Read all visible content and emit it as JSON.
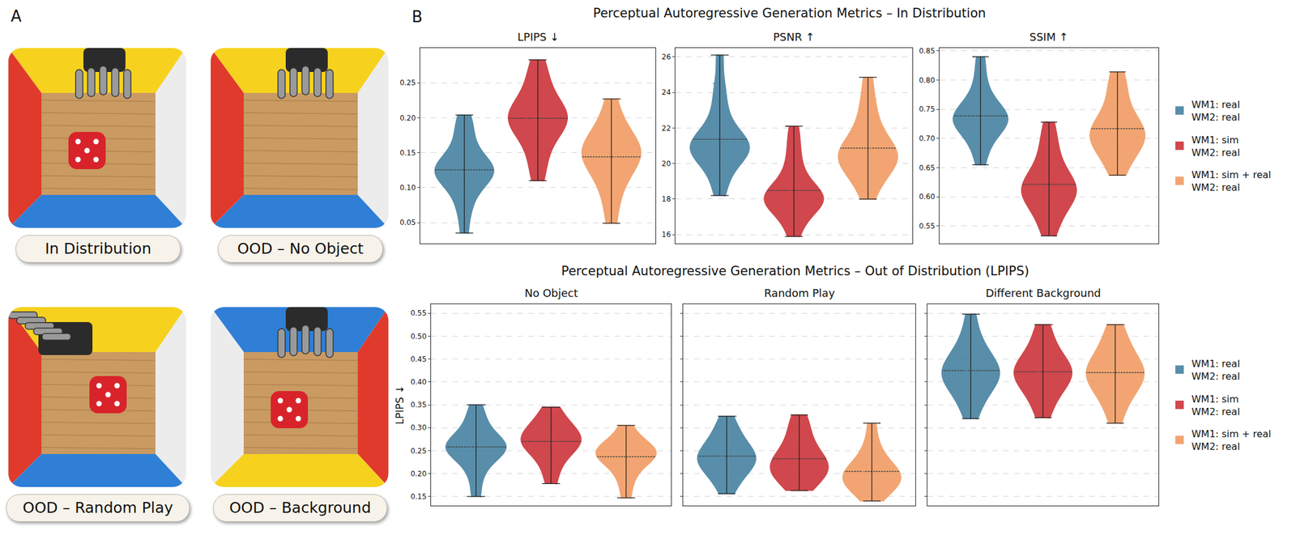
{
  "panel_a": {
    "letter": "A",
    "images": [
      "In Distribution",
      "OOD – No Object",
      "OOD – Random Play",
      "OOD – Background"
    ]
  },
  "panel_b": {
    "letter": "B",
    "titles": [
      "Perceptual Autoregressive Generation Metrics – In Distribution",
      "Perceptual Autoregressive Generation Metrics – Out of Distribution (LPIPS)"
    ]
  },
  "chart_data": [
    {
      "type": "violin",
      "title": "LPIPS ↓",
      "grid": true,
      "tick_labels": "y",
      "ylim": [
        0.02,
        0.3
      ],
      "yticks": [
        0.05,
        {
          "value": 0.1,
          "label": "0.10"
        },
        0.15,
        {
          "value": 0.2,
          "label": "0.20"
        },
        0.25
      ],
      "series": [
        {
          "name": "WM1: real\nWM2: real",
          "color": "#3b7b9c",
          "values": [
            0.035,
            0.065,
            0.08,
            0.095,
            0.105,
            0.11,
            0.115,
            0.12,
            0.122,
            0.125,
            0.128,
            0.13,
            0.135,
            0.14,
            0.15,
            0.16,
            0.175,
            0.19,
            0.204
          ]
        },
        {
          "name": "WM1: sim\nWM2: real",
          "color": "#c8282e",
          "values": [
            0.11,
            0.13,
            0.15,
            0.165,
            0.175,
            0.185,
            0.19,
            0.195,
            0.2,
            0.2,
            0.205,
            0.21,
            0.215,
            0.225,
            0.235,
            0.25,
            0.265,
            0.283
          ]
        },
        {
          "name": "WM1: sim + real\nWM2: real",
          "color": "#f0965a",
          "values": [
            0.049,
            0.08,
            0.1,
            0.115,
            0.125,
            0.135,
            0.14,
            0.145,
            0.15,
            0.155,
            0.16,
            0.165,
            0.175,
            0.185,
            0.2,
            0.227
          ]
        }
      ]
    },
    {
      "type": "violin",
      "title": "PSNR ↑",
      "grid": true,
      "tick_labels": "y",
      "ylim": [
        15.5,
        26.5
      ],
      "yticks": [
        16,
        18,
        20,
        22,
        24,
        26
      ],
      "series": [
        {
          "name": "WM1: real\nWM2: real",
          "color": "#3b7b9c",
          "values": [
            18.2,
            19.0,
            19.6,
            20.0,
            20.3,
            20.5,
            20.7,
            20.8,
            20.9,
            21.0,
            21.1,
            21.3,
            21.5,
            21.8,
            22.2,
            22.8,
            23.6,
            24.5,
            26.1
          ]
        },
        {
          "name": "WM1: sim\nWM2: real",
          "color": "#c8282e",
          "values": [
            15.9,
            16.6,
            17.1,
            17.4,
            17.6,
            17.8,
            17.9,
            18.0,
            18.1,
            18.2,
            18.3,
            18.5,
            18.8,
            19.2,
            19.7,
            20.4,
            21.2,
            22.1
          ]
        },
        {
          "name": "WM1: sim + real\nWM2: real",
          "color": "#f0965a",
          "values": [
            18.0,
            18.8,
            19.3,
            19.6,
            19.9,
            20.1,
            20.3,
            20.4,
            20.5,
            20.7,
            20.9,
            21.2,
            21.6,
            22.1,
            22.8,
            23.6,
            24.85
          ]
        }
      ]
    },
    {
      "type": "violin",
      "title": "SSIM ↑",
      "grid": true,
      "tick_labels": "y",
      "legend": "right",
      "ylim": [
        0.52,
        0.855
      ],
      "yticks": [
        0.55,
        {
          "value": 0.6,
          "label": "0.60"
        },
        0.65,
        {
          "value": 0.7,
          "label": "0.70"
        },
        0.75,
        {
          "value": 0.8,
          "label": "0.80"
        },
        0.85
      ],
      "series": [
        {
          "name": "WM1: real\nWM2: real",
          "color": "#3b7b9c",
          "values": [
            0.655,
            0.68,
            0.695,
            0.705,
            0.715,
            0.72,
            0.725,
            0.73,
            0.733,
            0.737,
            0.74,
            0.745,
            0.752,
            0.76,
            0.77,
            0.785,
            0.81,
            0.84
          ]
        },
        {
          "name": "WM1: sim\nWM2: real",
          "color": "#c8282e",
          "values": [
            0.533,
            0.555,
            0.57,
            0.585,
            0.595,
            0.6,
            0.605,
            0.61,
            0.615,
            0.62,
            0.625,
            0.635,
            0.645,
            0.66,
            0.68,
            0.7,
            0.728
          ]
        },
        {
          "name": "WM1: sim + real\nWM2: real",
          "color": "#f0965a",
          "values": [
            0.637,
            0.655,
            0.67,
            0.68,
            0.69,
            0.695,
            0.7,
            0.705,
            0.71,
            0.715,
            0.72,
            0.73,
            0.74,
            0.755,
            0.775,
            0.795,
            0.814
          ]
        }
      ]
    },
    {
      "type": "violin",
      "title": "No Object",
      "ylabel": "LPIPS ↓",
      "grid": true,
      "tick_labels": "y",
      "ylim": [
        0.13,
        0.57
      ],
      "yticks": [
        0.15,
        {
          "value": 0.2,
          "label": "0.20"
        },
        0.25,
        {
          "value": 0.3,
          "label": "0.30"
        },
        0.35,
        {
          "value": 0.4,
          "label": "0.40"
        },
        0.45,
        {
          "value": 0.5,
          "label": "0.50"
        },
        0.55
      ],
      "series": [
        {
          "name": "WM1: real\nWM2: real",
          "color": "#3b7b9c",
          "values": [
            0.15,
            0.19,
            0.215,
            0.23,
            0.24,
            0.248,
            0.252,
            0.256,
            0.26,
            0.265,
            0.27,
            0.28,
            0.29,
            0.305,
            0.325,
            0.35
          ]
        },
        {
          "name": "WM1: sim\nWM2: real",
          "color": "#c8282e",
          "values": [
            0.178,
            0.21,
            0.23,
            0.245,
            0.255,
            0.262,
            0.267,
            0.272,
            0.278,
            0.285,
            0.292,
            0.3,
            0.31,
            0.325,
            0.345
          ]
        },
        {
          "name": "WM1: sim + real\nWM2: real",
          "color": "#f0965a",
          "values": [
            0.147,
            0.18,
            0.2,
            0.215,
            0.225,
            0.232,
            0.238,
            0.242,
            0.246,
            0.25,
            0.256,
            0.262,
            0.27,
            0.282,
            0.305
          ]
        }
      ]
    },
    {
      "type": "violin",
      "title": "Random Play",
      "grid": true,
      "tick_labels": false,
      "ylim": [
        0.13,
        0.57
      ],
      "yticks": [
        0.15,
        {
          "value": 0.2,
          "label": "0.20"
        },
        0.25,
        {
          "value": 0.3,
          "label": "0.30"
        },
        0.35,
        {
          "value": 0.4,
          "label": "0.40"
        },
        0.45,
        {
          "value": 0.5,
          "label": "0.50"
        },
        0.55
      ],
      "series": [
        {
          "name": "WM1: real\nWM2: real",
          "color": "#3b7b9c",
          "values": [
            0.156,
            0.18,
            0.195,
            0.205,
            0.215,
            0.222,
            0.228,
            0.233,
            0.238,
            0.243,
            0.25,
            0.26,
            0.272,
            0.285,
            0.3,
            0.325
          ]
        },
        {
          "name": "WM1: sim\nWM2: real",
          "color": "#c8282e",
          "values": [
            0.163,
            0.175,
            0.185,
            0.195,
            0.202,
            0.208,
            0.212,
            0.217,
            0.222,
            0.228,
            0.235,
            0.245,
            0.258,
            0.272,
            0.29,
            0.31,
            0.328
          ]
        },
        {
          "name": "WM1: sim + real\nWM2: real",
          "color": "#f0965a",
          "values": [
            0.14,
            0.155,
            0.165,
            0.172,
            0.178,
            0.184,
            0.19,
            0.195,
            0.2,
            0.205,
            0.212,
            0.22,
            0.232,
            0.248,
            0.27,
            0.31
          ]
        }
      ]
    },
    {
      "type": "violin",
      "title": "Different Background",
      "grid": true,
      "tick_labels": false,
      "legend": "right",
      "ylim": [
        0.13,
        0.57
      ],
      "yticks": [
        0.15,
        {
          "value": 0.2,
          "label": "0.20"
        },
        0.25,
        {
          "value": 0.3,
          "label": "0.30"
        },
        0.35,
        {
          "value": 0.4,
          "label": "0.40"
        },
        0.45,
        {
          "value": 0.5,
          "label": "0.50"
        },
        0.55
      ],
      "series": [
        {
          "name": "WM1: real\nWM2: real",
          "color": "#3b7b9c",
          "values": [
            0.32,
            0.35,
            0.37,
            0.385,
            0.395,
            0.405,
            0.412,
            0.418,
            0.425,
            0.432,
            0.44,
            0.45,
            0.465,
            0.48,
            0.505,
            0.548
          ]
        },
        {
          "name": "WM1: sim\nWM2: real",
          "color": "#c8282e",
          "values": [
            0.322,
            0.35,
            0.37,
            0.385,
            0.395,
            0.405,
            0.412,
            0.418,
            0.424,
            0.43,
            0.438,
            0.448,
            0.46,
            0.475,
            0.5,
            0.525
          ]
        },
        {
          "name": "WM1: sim + real\nWM2: real",
          "color": "#f0965a",
          "values": [
            0.31,
            0.345,
            0.365,
            0.38,
            0.392,
            0.402,
            0.41,
            0.417,
            0.423,
            0.43,
            0.438,
            0.448,
            0.462,
            0.48,
            0.5,
            0.525
          ]
        }
      ]
    }
  ]
}
